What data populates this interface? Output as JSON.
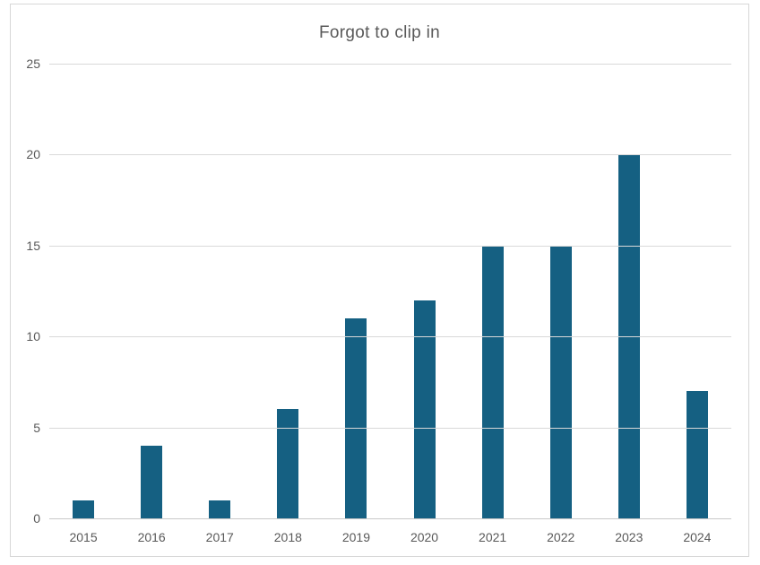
{
  "colors": {
    "bar": "#156082",
    "gridline": "#d9d9d9",
    "axis_line": "#c9c9c9",
    "text": "#595959",
    "frame_border": "#d7d7d7",
    "background": "#ffffff"
  },
  "chart_data": {
    "type": "bar",
    "title": "Forgot to clip in",
    "categories": [
      "2015",
      "2016",
      "2017",
      "2018",
      "2019",
      "2020",
      "2021",
      "2022",
      "2023",
      "2024"
    ],
    "values": [
      1,
      4,
      1,
      6,
      11,
      12,
      15,
      15,
      20,
      7
    ],
    "xlabel": "",
    "ylabel": "",
    "ylim": [
      0,
      25
    ],
    "yticks": [
      0,
      5,
      10,
      15,
      20,
      25
    ],
    "grid": "horizontal",
    "legend": "none",
    "bar_color": "#156082"
  }
}
